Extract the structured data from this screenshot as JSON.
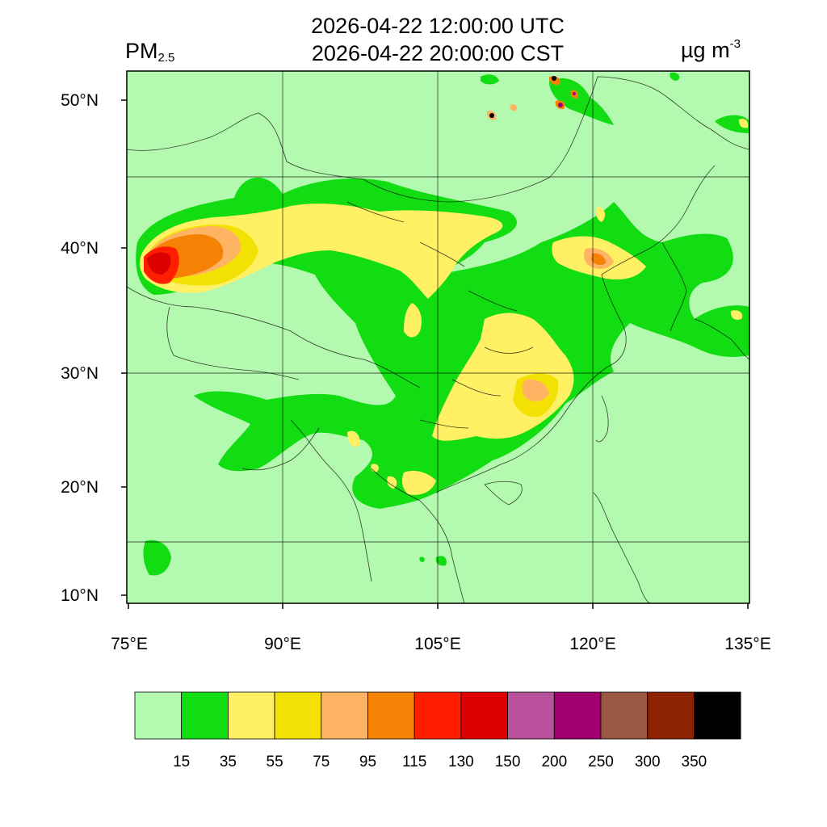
{
  "title": {
    "line1": "2026-04-22 12:00:00 UTC",
    "line2": "2026-04-22 20:00:00 CST",
    "variable": "PM",
    "variable_sub": "2.5",
    "unit": "µg m",
    "unit_sup": "-3"
  },
  "axes": {
    "lat_ticks": [
      "50°N",
      "40°N",
      "30°N",
      "20°N",
      "10°N"
    ],
    "lon_ticks": [
      "75°E",
      "90°E",
      "105°E",
      "120°E",
      "135°E"
    ]
  },
  "colorbar": {
    "labels": [
      "15",
      "35",
      "55",
      "75",
      "95",
      "115",
      "130",
      "150",
      "200",
      "250",
      "300",
      "350"
    ],
    "colors": [
      "#b4f9b0",
      "#12dc12",
      "#fff064",
      "#f2e102",
      "#ffb464",
      "#f58205",
      "#ff1e00",
      "#dc0000",
      "#b9509b",
      "#a0006e",
      "#9a5743",
      "#8c2200",
      "#000000"
    ]
  },
  "map": {
    "background_color": "#b4f9b0",
    "region": "China and surrounding East Asia",
    "lon_range": [
      75,
      135
    ],
    "lat_range": [
      9,
      52
    ]
  }
}
